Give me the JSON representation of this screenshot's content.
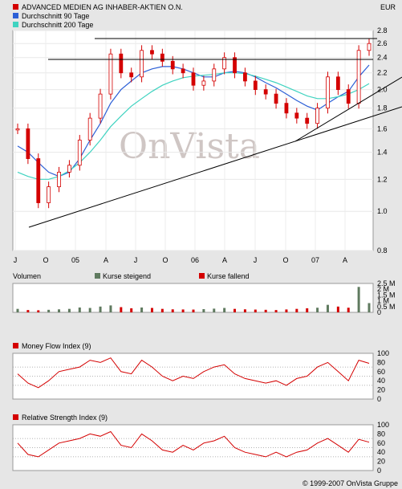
{
  "chart_data": [
    {
      "type": "candlestick",
      "legend": [
        {
          "name": "ADVANCED MEDIEN AG INHABER-AKTIEN O.N.",
          "color": "#d40000"
        },
        {
          "name": "Durchschnitt 90 Tage",
          "color": "#2c5fd6"
        },
        {
          "name": "Durchschnitt 200 Tage",
          "color": "#3fd3c0"
        }
      ],
      "currency": "EUR",
      "watermark": "OnVista",
      "ylim": [
        0.8,
        2.8
      ],
      "yscale": "log",
      "y_ticks": [
        "2.8",
        "2.6",
        "2.4",
        "2.2",
        "2.0",
        "1.8",
        "1.6",
        "1.4",
        "1.2",
        "1.0",
        "0.8"
      ],
      "x_ticks": [
        "J",
        "O",
        "05",
        "A",
        "J",
        "O",
        "06",
        "A",
        "J",
        "O",
        "07",
        "A"
      ],
      "x": [
        "2004-07",
        "2004-08",
        "2004-09",
        "2004-10",
        "2004-11",
        "2004-12",
        "2005-01",
        "2005-02",
        "2005-03",
        "2005-04",
        "2005-05",
        "2005-06",
        "2005-07",
        "2005-08",
        "2005-09",
        "2005-10",
        "2005-11",
        "2005-12",
        "2006-01",
        "2006-02",
        "2006-03",
        "2006-04",
        "2006-05",
        "2006-06",
        "2006-07",
        "2006-08",
        "2006-09",
        "2006-10",
        "2006-11",
        "2006-12",
        "2007-01",
        "2007-02",
        "2007-03",
        "2007-04",
        "2007-05"
      ],
      "series": [
        {
          "name": "ADVANCED MEDIEN AG INHABER-AKTIEN O.N.",
          "values": [
            1.6,
            1.35,
            1.05,
            1.15,
            1.25,
            1.3,
            1.5,
            1.7,
            1.95,
            2.45,
            2.2,
            2.15,
            2.5,
            2.45,
            2.35,
            2.25,
            2.2,
            2.05,
            2.1,
            2.25,
            2.4,
            2.2,
            2.1,
            2.0,
            1.95,
            1.85,
            1.75,
            1.7,
            1.65,
            1.8,
            2.15,
            2.0,
            1.85,
            2.5,
            2.6
          ]
        },
        {
          "name": "Durchschnitt 90 Tage",
          "values": [
            1.45,
            1.4,
            1.32,
            1.25,
            1.22,
            1.25,
            1.35,
            1.5,
            1.65,
            1.85,
            2.0,
            2.1,
            2.2,
            2.25,
            2.28,
            2.28,
            2.25,
            2.2,
            2.15,
            2.15,
            2.2,
            2.22,
            2.2,
            2.15,
            2.08,
            2.02,
            1.95,
            1.88,
            1.82,
            1.78,
            1.85,
            1.92,
            1.98,
            2.15,
            2.3
          ]
        },
        {
          "name": "Durchschnitt 200 Tage",
          "values": [
            1.25,
            1.22,
            1.2,
            1.2,
            1.22,
            1.26,
            1.32,
            1.4,
            1.5,
            1.62,
            1.72,
            1.82,
            1.9,
            1.98,
            2.05,
            2.1,
            2.14,
            2.16,
            2.17,
            2.18,
            2.2,
            2.2,
            2.19,
            2.16,
            2.12,
            2.08,
            2.03,
            1.98,
            1.93,
            1.9,
            1.9,
            1.92,
            1.95,
            2.0,
            2.07
          ]
        }
      ]
    },
    {
      "type": "bar",
      "title": "Volumen",
      "legend": [
        {
          "name": "Kurse steigend",
          "color": "#5f7a5f"
        },
        {
          "name": "Kurse fallend",
          "color": "#d40000"
        }
      ],
      "y_ticks": [
        "2.5 M",
        "2 M",
        "1.5 M",
        "1 M",
        "0.5 M",
        "0"
      ],
      "ylim": [
        0,
        2500000
      ],
      "values": [
        300000,
        200000,
        180000,
        220000,
        260000,
        300000,
        420000,
        380000,
        500000,
        600000,
        450000,
        350000,
        420000,
        380000,
        300000,
        260000,
        250000,
        240000,
        280000,
        320000,
        380000,
        300000,
        260000,
        240000,
        220000,
        200000,
        250000,
        300000,
        350000,
        400000,
        650000,
        500000,
        400000,
        2200000,
        800000
      ]
    },
    {
      "type": "line",
      "title": "Money Flow Index (9)",
      "color": "#d40000",
      "ylim": [
        0,
        100
      ],
      "y_ticks": [
        "100",
        "80",
        "60",
        "40",
        "20",
        "0"
      ],
      "values": [
        55,
        35,
        25,
        40,
        60,
        65,
        70,
        85,
        80,
        90,
        60,
        55,
        85,
        70,
        50,
        40,
        50,
        45,
        60,
        70,
        75,
        55,
        45,
        40,
        35,
        40,
        30,
        45,
        50,
        70,
        80,
        60,
        40,
        85,
        78
      ]
    },
    {
      "type": "line",
      "title": "Relative Strength Index (9)",
      "color": "#d40000",
      "ylim": [
        0,
        100
      ],
      "y_ticks": [
        "100",
        "80",
        "60",
        "40",
        "20",
        "0"
      ],
      "values": [
        60,
        35,
        30,
        45,
        60,
        65,
        70,
        80,
        75,
        85,
        55,
        50,
        80,
        65,
        45,
        40,
        55,
        45,
        60,
        65,
        75,
        50,
        40,
        35,
        30,
        40,
        30,
        40,
        45,
        60,
        70,
        55,
        40,
        68,
        62
      ]
    }
  ],
  "footer": "© 1999-2007 OnVista Gruppe"
}
